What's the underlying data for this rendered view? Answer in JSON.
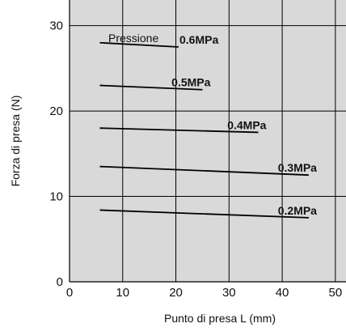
{
  "chart_data": {
    "type": "line",
    "xlabel": "Punto di presa L (mm)",
    "ylabel": "Forza di presa  (N)",
    "xlim": [
      0,
      52
    ],
    "ylim": [
      0,
      33
    ],
    "xticks": [
      0,
      10,
      20,
      30,
      40,
      50
    ],
    "yticks": [
      0,
      10,
      20,
      30
    ],
    "x_tick_labels": [
      "0",
      "10",
      "20",
      "30",
      "40",
      "50"
    ],
    "y_tick_labels": [
      "0",
      "10",
      "20",
      "30"
    ],
    "grid": true,
    "background_color": "#d9d9d9",
    "line_color": "#000000",
    "legend_title": "Pressione",
    "series": [
      {
        "name": "0.6MPa",
        "x": [
          5.7,
          20.5
        ],
        "y": [
          28.0,
          27.5
        ]
      },
      {
        "name": "0.5MPa",
        "x": [
          5.7,
          25.0
        ],
        "y": [
          23.0,
          22.5
        ]
      },
      {
        "name": "0.4MPa",
        "x": [
          5.7,
          35.5
        ],
        "y": [
          18.0,
          17.5
        ]
      },
      {
        "name": "0.3MPa",
        "x": [
          5.7,
          45.0
        ],
        "y": [
          13.5,
          12.5
        ]
      },
      {
        "name": "0.2MPa",
        "x": [
          5.7,
          45.0
        ],
        "y": [
          8.4,
          7.5
        ]
      }
    ]
  }
}
